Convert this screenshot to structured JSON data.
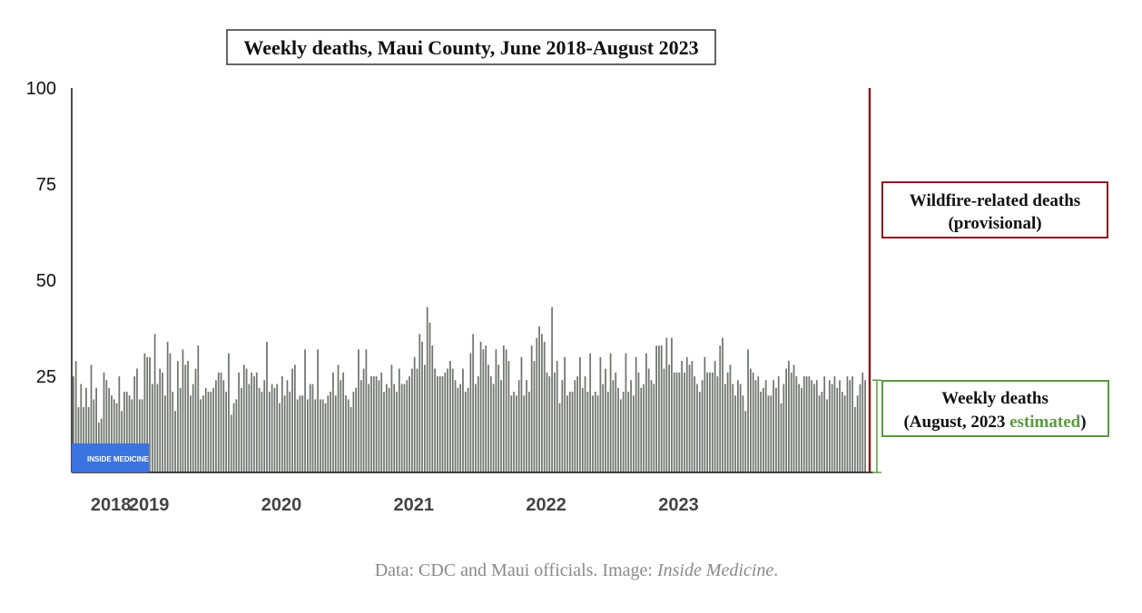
{
  "caption": {
    "prefix": "Data: CDC and Maui officials. Image: ",
    "source": "Inside Medicine",
    "suffix": "."
  },
  "logo": {
    "text": "INSIDE MEDICINE",
    "color": "#3b73e0"
  },
  "colors": {
    "bars": "#6f756f",
    "wildfire": "#8b1a1a",
    "weekly": "#5a9a3e",
    "axis": "#111111"
  },
  "chart_data": {
    "type": "bar",
    "title": "Weekly deaths, Maui County, June 2018-August 2023",
    "ylim": [
      0,
      100
    ],
    "yticks": [
      25,
      50,
      75,
      100
    ],
    "year_labels": [
      "2018",
      "2019",
      "2020",
      "2021",
      "2022",
      "2023"
    ],
    "week_start": "2018-06",
    "week_end": "2023-08",
    "values": [
      25,
      29,
      17,
      23,
      17,
      22,
      17,
      28,
      19,
      22,
      13,
      14,
      26,
      24,
      22,
      20,
      19,
      18,
      25,
      16,
      21,
      21,
      20,
      19,
      25,
      27,
      19,
      19,
      31,
      30,
      30,
      23,
      36,
      23,
      27,
      26,
      20,
      34,
      31,
      21,
      16,
      29,
      22,
      32,
      28,
      29,
      20,
      23,
      27,
      33,
      19,
      20,
      22,
      21,
      21,
      22,
      24,
      26,
      26,
      24,
      21,
      31,
      15,
      18,
      19,
      26,
      22,
      28,
      27,
      23,
      26,
      25,
      26,
      22,
      21,
      24,
      34,
      21,
      23,
      22,
      23,
      18,
      25,
      20,
      24,
      21,
      27,
      28,
      19,
      20,
      20,
      32,
      19,
      23,
      23,
      19,
      32,
      19,
      19,
      18,
      20,
      21,
      26,
      20,
      28,
      24,
      26,
      20,
      19,
      17,
      21,
      22,
      32,
      24,
      27,
      32,
      23,
      25,
      25,
      25,
      24,
      26,
      21,
      23,
      22,
      28,
      23,
      21,
      27,
      23,
      23,
      24,
      25,
      27,
      30,
      27,
      36,
      34,
      28,
      43,
      39,
      33,
      27,
      25,
      25,
      25,
      26,
      27,
      29,
      27,
      24,
      22,
      23,
      27,
      21,
      22,
      31,
      36,
      23,
      25,
      34,
      32,
      33,
      28,
      25,
      23,
      32,
      28,
      24,
      33,
      32,
      29,
      20,
      21,
      20,
      24,
      30,
      20,
      24,
      21,
      33,
      29,
      35,
      38,
      36,
      34,
      26,
      25,
      43,
      26,
      29,
      18,
      24,
      30,
      20,
      21,
      21,
      24,
      25,
      30,
      22,
      25,
      21,
      31,
      20,
      21,
      20,
      30,
      23,
      27,
      21,
      31,
      24,
      26,
      22,
      19,
      21,
      31,
      21,
      24,
      20,
      30,
      26,
      22,
      23,
      31,
      27,
      24,
      23,
      33,
      33,
      33,
      27,
      35,
      28,
      35,
      26,
      26,
      26,
      29,
      26,
      30,
      28,
      29,
      25,
      23,
      21,
      24,
      30,
      26,
      26,
      26,
      29,
      25,
      33,
      35,
      23,
      26,
      28,
      23,
      20,
      24,
      23,
      20,
      16,
      32,
      27,
      26,
      24,
      25,
      21,
      22,
      24,
      20,
      20,
      24,
      22,
      25,
      18,
      23,
      27,
      29,
      26,
      28,
      25,
      23,
      22,
      25,
      25,
      25,
      24,
      23,
      24,
      20,
      21,
      25,
      19,
      24,
      23,
      25,
      22,
      24,
      21,
      20,
      25,
      24,
      25,
      17,
      20,
      23,
      26,
      24
    ],
    "annotations": {
      "wildfire": {
        "line1": "Wildfire-related deaths",
        "line2": "(provisional)",
        "total": 100
      },
      "weekly": {
        "line1": "Weekly deaths",
        "line2_prefix": "(August, 2023 ",
        "line2_highlight": "estimated",
        "line2_suffix": ")",
        "total": 24
      }
    }
  }
}
